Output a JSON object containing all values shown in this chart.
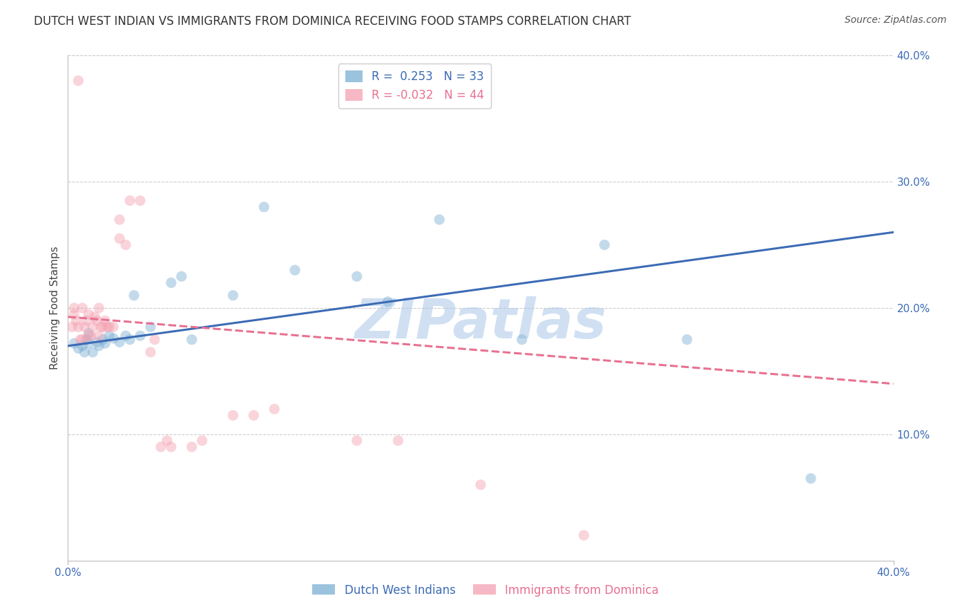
{
  "title": "DUTCH WEST INDIAN VS IMMIGRANTS FROM DOMINICA RECEIVING FOOD STAMPS CORRELATION CHART",
  "source": "Source: ZipAtlas.com",
  "ylabel_left": "Receiving Food Stamps",
  "xmin": 0.0,
  "xmax": 0.4,
  "ymin": 0.0,
  "ymax": 0.4,
  "x_tick_labels": [
    "0.0%",
    "40.0%"
  ],
  "x_tick_positions": [
    0.0,
    0.4
  ],
  "y_ticks_right": [
    0.1,
    0.2,
    0.3,
    0.4
  ],
  "y_tick_labels_right": [
    "10.0%",
    "20.0%",
    "30.0%",
    "40.0%"
  ],
  "grid_color": "#cccccc",
  "background_color": "#ffffff",
  "blue_color": "#7bafd4",
  "pink_color": "#f4a0b0",
  "blue_line_color": "#3b6bb5",
  "pink_line_color": "#e87090",
  "blue_R": 0.253,
  "blue_N": 33,
  "pink_R": -0.032,
  "pink_N": 44,
  "blue_label": "Dutch West Indians",
  "pink_label": "Immigrants from Dominica",
  "watermark": "ZIPatlas",
  "watermark_color": "#aac8e8",
  "blue_x": [
    0.003,
    0.005,
    0.007,
    0.008,
    0.009,
    0.01,
    0.01,
    0.012,
    0.014,
    0.015,
    0.017,
    0.018,
    0.02,
    0.022,
    0.025,
    0.028,
    0.03,
    0.032,
    0.035,
    0.04,
    0.05,
    0.055,
    0.06,
    0.08,
    0.095,
    0.11,
    0.14,
    0.155,
    0.18,
    0.22,
    0.26,
    0.3,
    0.36
  ],
  "blue_y": [
    0.172,
    0.168,
    0.17,
    0.165,
    0.175,
    0.172,
    0.18,
    0.165,
    0.173,
    0.17,
    0.175,
    0.172,
    0.178,
    0.176,
    0.173,
    0.178,
    0.175,
    0.21,
    0.178,
    0.185,
    0.22,
    0.225,
    0.175,
    0.21,
    0.28,
    0.23,
    0.225,
    0.205,
    0.27,
    0.175,
    0.25,
    0.175,
    0.065
  ],
  "pink_x": [
    0.002,
    0.003,
    0.003,
    0.004,
    0.005,
    0.005,
    0.006,
    0.007,
    0.007,
    0.008,
    0.009,
    0.01,
    0.01,
    0.011,
    0.012,
    0.013,
    0.014,
    0.015,
    0.015,
    0.016,
    0.017,
    0.018,
    0.019,
    0.02,
    0.022,
    0.025,
    0.025,
    0.028,
    0.03,
    0.035,
    0.04,
    0.042,
    0.045,
    0.048,
    0.05,
    0.06,
    0.065,
    0.08,
    0.09,
    0.1,
    0.14,
    0.16,
    0.2,
    0.25
  ],
  "pink_y": [
    0.185,
    0.2,
    0.195,
    0.19,
    0.38,
    0.185,
    0.175,
    0.175,
    0.2,
    0.185,
    0.19,
    0.195,
    0.178,
    0.178,
    0.185,
    0.193,
    0.19,
    0.2,
    0.178,
    0.185,
    0.185,
    0.19,
    0.185,
    0.185,
    0.185,
    0.255,
    0.27,
    0.25,
    0.285,
    0.285,
    0.165,
    0.175,
    0.09,
    0.095,
    0.09,
    0.09,
    0.095,
    0.115,
    0.115,
    0.12,
    0.095,
    0.095,
    0.06,
    0.02
  ],
  "title_fontsize": 12,
  "source_fontsize": 10,
  "legend_fontsize": 12,
  "axis_label_fontsize": 11,
  "tick_fontsize": 11,
  "marker_size": 11,
  "marker_alpha": 0.45,
  "line_width": 2.2,
  "blue_line_start_y": 0.17,
  "blue_line_end_y": 0.26,
  "pink_line_start_y": 0.193,
  "pink_line_end_y": 0.14
}
